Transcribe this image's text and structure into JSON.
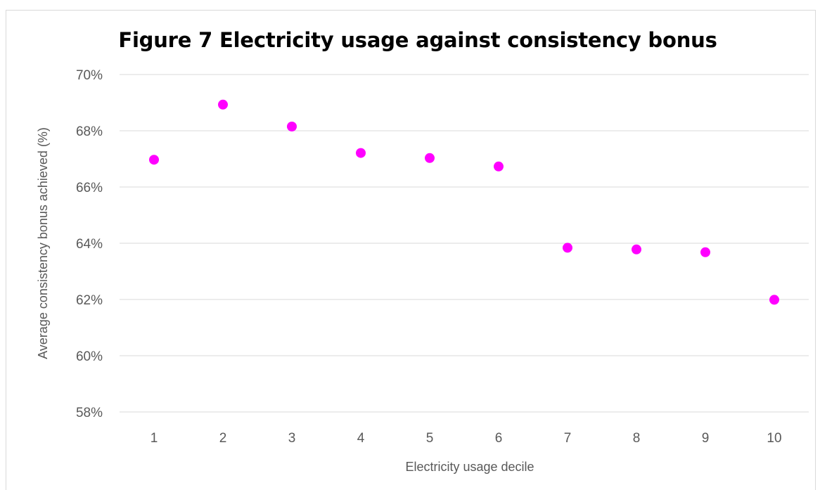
{
  "chart_data": {
    "type": "scatter",
    "title": "Figure 7 Electricity usage against consistency bonus",
    "xlabel": "Electricity usage decile",
    "ylabel": "Average consistency bonus achieved (%)",
    "x": [
      1,
      2,
      3,
      4,
      5,
      6,
      7,
      8,
      9,
      10
    ],
    "x_tick_labels": [
      "1",
      "2",
      "3",
      "4",
      "5",
      "6",
      "7",
      "8",
      "9",
      "10"
    ],
    "y": [
      0.6697,
      0.6893,
      0.6815,
      0.6721,
      0.6703,
      0.6673,
      0.6384,
      0.6378,
      0.6368,
      0.6199
    ],
    "ylim": [
      0.58,
      0.7
    ],
    "y_ticks": [
      0.58,
      0.6,
      0.62,
      0.64,
      0.66,
      0.68,
      0.7
    ],
    "y_tick_labels": [
      "58%",
      "60%",
      "62%",
      "64%",
      "66%",
      "68%",
      "70%"
    ],
    "grid": true,
    "legend": "none",
    "marker_color": "#FF00FF",
    "grid_color": "#D9D9D9",
    "axis_text_color": "#595959"
  }
}
